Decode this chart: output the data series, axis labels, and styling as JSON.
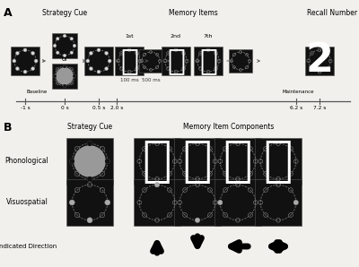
{
  "bg_color": "#f2f0ec",
  "panel_a_label": "A",
  "panel_b_label": "B",
  "section_a_title_strategy": "Strategy Cue",
  "section_a_title_memory": "Memory Items",
  "section_a_title_recall": "Recall Number",
  "timeline_labels": [
    "-1 s",
    "0 s",
    "0.5 s",
    "2.0 s",
    "6.2 s",
    "7.2 s"
  ],
  "baseline_label": "Baseline",
  "maintenance_label": "Maintenance",
  "ms_100": "100 ms",
  "ms_500": "500 ms",
  "ordinal_1st": "1st",
  "ordinal_2nd": "2nd",
  "ordinal_7th": "7th",
  "chinese_up": "上",
  "chinese_down": "下",
  "chinese_left": "左",
  "chinese_right": "右",
  "recall_number": "2",
  "strat_cue_label": "Strategy Cue",
  "mem_comp_label": "Memory Item Components",
  "phono_label": "Phonological",
  "visuo_label": "Visuospatial",
  "indicated_label": "Indicated Direction"
}
